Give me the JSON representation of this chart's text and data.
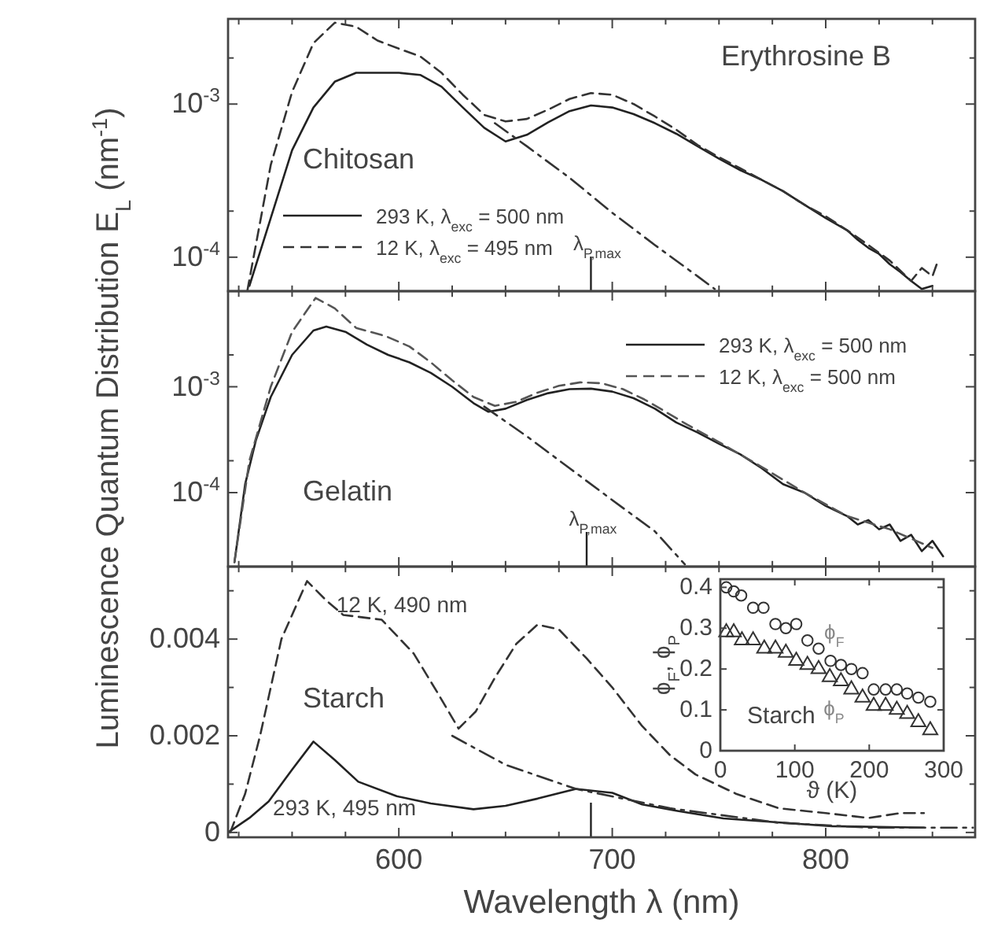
{
  "chart_data": [
    {
      "type": "line",
      "title": "Erythrosine B",
      "xlim": [
        520,
        870
      ],
      "ylim": [
        6e-05,
        0.0036
      ],
      "log": "y",
      "tick_labels": "y",
      "legend": "bottom left",
      "xticks": [
        {
          "value": 525,
          "label": null
        },
        {
          "value": 550,
          "label": null
        },
        {
          "value": 575,
          "label": null
        },
        600,
        {
          "value": 625,
          "label": null
        },
        {
          "value": 650,
          "label": null
        },
        {
          "value": 675,
          "label": null
        },
        700,
        {
          "value": 725,
          "label": null
        },
        {
          "value": 750,
          "label": null
        },
        {
          "value": 775,
          "label": null
        },
        800,
        {
          "value": 825,
          "label": null
        },
        {
          "value": 850,
          "label": null
        }
      ],
      "yticks": [
        {
          "value": 0.0001,
          "label": "10$^{-4}$"
        },
        {
          "value": 0.0002,
          "label": null
        },
        {
          "value": 0.001,
          "label": "10$^{-3}$"
        },
        {
          "value": 0.002,
          "label": null
        }
      ],
      "annotations": [
        "Chitosan"
      ],
      "ref_lines": [
        {
          "axis": "x",
          "value": 690,
          "label": "λ$_{P,max}$"
        }
      ],
      "series": [
        {
          "name": "293 K, λ$_{exc}$ = 500 nm",
          "color": "#222222",
          "line_style": "solid",
          "x": [
            530,
            540,
            550,
            560,
            570,
            580,
            590,
            600,
            610,
            620,
            630,
            640,
            650,
            660,
            670,
            680,
            690,
            700,
            710,
            720,
            730,
            740,
            750,
            760,
            770,
            780,
            790,
            800,
            810,
            815,
            820,
            825,
            830,
            835,
            840,
            845,
            850
          ],
          "values": [
            6.5e-05,
            0.00018,
            0.0005,
            0.00095,
            0.0014,
            0.0016,
            0.0016,
            0.0016,
            0.00155,
            0.0013,
            0.00095,
            0.0007,
            0.00057,
            0.00063,
            0.00076,
            0.0009,
            0.00098,
            0.00095,
            0.00086,
            0.00075,
            0.00064,
            0.00053,
            0.00044,
            0.00037,
            0.00032,
            0.00027,
            0.00022,
            0.00018,
            0.00015,
            0.00013,
            0.000115,
            0.000105,
            9e-05,
            8e-05,
            7e-05,
            6.2e-05,
            6.5e-05
          ]
        },
        {
          "name": "12 K, λ$_{exc}$ = 495 nm",
          "color": "#333333",
          "line_style": "dashed",
          "x": [
            529,
            540,
            550,
            560,
            570,
            580,
            590,
            600,
            610,
            620,
            630,
            640,
            650,
            660,
            670,
            680,
            690,
            700,
            710,
            720,
            730,
            740,
            750,
            760,
            770,
            780,
            790,
            800,
            810,
            820,
            830,
            840,
            845,
            850,
            852
          ],
          "values": [
            6e-05,
            0.0004,
            0.0012,
            0.0025,
            0.0034,
            0.0032,
            0.0026,
            0.0023,
            0.00205,
            0.0016,
            0.00115,
            0.00085,
            0.00077,
            0.0008,
            0.00092,
            0.00108,
            0.00118,
            0.00115,
            0.001,
            0.00083,
            0.00068,
            0.00054,
            0.00045,
            0.00038,
            0.00032,
            0.00027,
            0.00022,
            0.000185,
            0.00015,
            0.00012,
            9.5e-05,
            7e-05,
            8.5e-05,
            7.5e-05,
            9e-05
          ]
        },
        {
          "color": "#333333",
          "line_style": "dashdot",
          "x": [
            645,
            660,
            680,
            700,
            720,
            740,
            748
          ],
          "values": [
            0.00075,
            0.00053,
            0.00033,
            0.000195,
            0.00012,
            7.5e-05,
            6.2e-05
          ]
        }
      ]
    },
    {
      "type": "line",
      "ylabel": "Luminescence Quantum Distribution  E$_{L}$ (nm$^{-1}$)",
      "xlim": [
        520,
        870
      ],
      "ylim": [
        2e-05,
        0.008
      ],
      "log": "y",
      "tick_labels": "y",
      "legend": "top right",
      "xticks": [
        {
          "value": 525,
          "label": null
        },
        {
          "value": 550,
          "label": null
        },
        {
          "value": 575,
          "label": null
        },
        600,
        {
          "value": 625,
          "label": null
        },
        {
          "value": 650,
          "label": null
        },
        {
          "value": 675,
          "label": null
        },
        700,
        {
          "value": 725,
          "label": null
        },
        {
          "value": 750,
          "label": null
        },
        {
          "value": 775,
          "label": null
        },
        800,
        {
          "value": 825,
          "label": null
        },
        {
          "value": 850,
          "label": null
        }
      ],
      "yticks": [
        {
          "value": 0.0001,
          "label": "10$^{-4}$"
        },
        {
          "value": 0.0002,
          "label": null
        },
        {
          "value": 0.001,
          "label": "10$^{-3}$"
        },
        {
          "value": 0.002,
          "label": null
        }
      ],
      "annotations": [
        "Gelatin"
      ],
      "ref_lines": [
        {
          "axis": "x",
          "value": 688,
          "label": "λ$_{P,max}$"
        }
      ],
      "series": [
        {
          "name": "293 K, λ$_{exc}$ = 500 nm",
          "color": "#222222",
          "line_style": "solid",
          "x": [
            523,
            528,
            533,
            540,
            550,
            560,
            566,
            575,
            585,
            595,
            605,
            615,
            625,
            635,
            642,
            650,
            660,
            670,
            680,
            690,
            700,
            710,
            720,
            730,
            740,
            750,
            760,
            770,
            780,
            790,
            800,
            810,
            815,
            820,
            825,
            830,
            835,
            840,
            845,
            850,
            855
          ],
          "values": [
            2.2e-05,
            0.00012,
            0.00031,
            0.0008,
            0.002,
            0.0034,
            0.0037,
            0.0033,
            0.0025,
            0.002,
            0.0017,
            0.00135,
            0.001,
            0.0007,
            0.00058,
            0.00062,
            0.00075,
            0.00087,
            0.00095,
            0.00096,
            0.0009,
            0.00078,
            0.00062,
            0.00046,
            0.00037,
            0.00029,
            0.00023,
            0.00017,
            0.00012,
            0.0001,
            7.5e-05,
            6e-05,
            5e-05,
            5.5e-05,
            4.5e-05,
            5e-05,
            3.5e-05,
            4e-05,
            2.8e-05,
            3.5e-05,
            2.5e-05
          ]
        },
        {
          "name": "12 K, λ$_{exc}$ = 500 nm",
          "color": "#555555",
          "line_style": "dashed",
          "x": [
            523,
            530,
            540,
            550,
            561,
            570,
            580,
            594,
            605,
            615,
            625,
            635,
            645,
            655,
            665,
            675,
            685,
            695,
            705,
            715,
            725,
            735,
            750,
            770,
            790,
            810,
            830,
            850
          ],
          "values": [
            2.2e-05,
            0.0002,
            0.001,
            0.0033,
            0.0069,
            0.0055,
            0.0036,
            0.003,
            0.0024,
            0.0017,
            0.00115,
            0.0008,
            0.00066,
            0.00072,
            0.00088,
            0.00102,
            0.0011,
            0.00108,
            0.00095,
            0.00076,
            0.00058,
            0.00044,
            0.0003,
            0.000175,
            0.0001,
            6e-05,
            4.5e-05,
            3e-05
          ]
        },
        {
          "color": "#333333",
          "line_style": "dashdot",
          "x": [
            640,
            660,
            680,
            700,
            720,
            734
          ],
          "values": [
            0.00065,
            0.00034,
            0.00017,
            8.5e-05,
            4.3e-05,
            2.1e-05
          ]
        }
      ]
    },
    {
      "type": "line",
      "xlabel": "Wavelength  λ  (nm)",
      "xlim": [
        520,
        870
      ],
      "ylim": [
        -0.0001,
        0.0055
      ],
      "xticks": [
        {
          "value": 525,
          "label": null
        },
        {
          "value": 550,
          "label": null
        },
        {
          "value": 575,
          "label": null
        },
        600,
        {
          "value": 625,
          "label": null
        },
        {
          "value": 650,
          "label": null
        },
        {
          "value": 675,
          "label": null
        },
        700,
        {
          "value": 725,
          "label": null
        },
        {
          "value": 750,
          "label": null
        },
        {
          "value": 775,
          "label": null
        },
        800,
        {
          "value": 825,
          "label": null
        },
        {
          "value": 850,
          "label": null
        }
      ],
      "yticks": [
        0,
        {
          "value": 0.001,
          "label": null
        },
        0.002,
        {
          "value": 0.003,
          "label": null
        },
        0.004,
        {
          "value": 0.005,
          "label": null
        }
      ],
      "annotations": [
        "Starch",
        "12 K, 490 nm",
        "293 K, 495 nm"
      ],
      "ref_lines": [
        {
          "axis": "x",
          "value": 690,
          "label": null
        }
      ],
      "series": [
        {
          "color": "#222222",
          "line_style": "solid",
          "x": [
            520,
            530,
            539,
            550,
            560,
            570,
            581,
            599,
            615,
            635,
            650,
            665,
            683,
            700,
            714,
            730,
            752,
            780,
            803,
            846
          ],
          "values": [
            0,
            0.0003,
            0.00064,
            0.0013,
            0.00188,
            0.0015,
            0.00105,
            0.00075,
            0.0006,
            0.00048,
            0.00055,
            0.0007,
            0.0009,
            0.00082,
            0.00058,
            0.00045,
            0.00029,
            0.0002,
            0.00013,
            0.0001
          ]
        },
        {
          "color": "#333333",
          "line_style": "dashed",
          "x": [
            521,
            528,
            535,
            545,
            557,
            566,
            574,
            592,
            607,
            618,
            628,
            636,
            645,
            655,
            665,
            675,
            688,
            700,
            714,
            727,
            739,
            758,
            778,
            800,
            820,
            835,
            846
          ],
          "values": [
            0,
            0.0008,
            0.002,
            0.004,
            0.0052,
            0.0048,
            0.0045,
            0.0044,
            0.0037,
            0.0029,
            0.00215,
            0.0025,
            0.0032,
            0.0039,
            0.0043,
            0.0042,
            0.0036,
            0.003,
            0.0022,
            0.0016,
            0.0012,
            0.0008,
            0.0005,
            0.0004,
            0.0003,
            0.0004,
            0.0004
          ]
        },
        {
          "color": "#333333",
          "line_style": "dashdot",
          "x": [
            625,
            650,
            683,
            727,
            778,
            820,
            869
          ],
          "values": [
            0.002,
            0.0014,
            0.0009,
            0.0005,
            0.0002,
            0.0001,
            0.0001
          ]
        }
      ]
    },
    {
      "type": "scatter",
      "xlabel": "ϑ  (K)",
      "ylabel": "ϕ$_{F}$, ϕ$_{P}$",
      "xlim": [
        0,
        300
      ],
      "ylim": [
        0,
        0.42
      ],
      "xticks": [
        0,
        100,
        200,
        300
      ],
      "yticks": [
        0,
        0.1,
        0.2,
        0.3,
        0.4
      ],
      "annotations": [
        "Starch"
      ],
      "series": [
        {
          "name": "ϕ$_{F}$",
          "color": "#333333",
          "marker": "circle",
          "x": [
            8,
            18,
            28,
            44,
            58,
            74,
            88,
            102,
            117,
            132,
            148,
            162,
            176,
            191,
            206,
            222,
            237,
            251,
            266,
            282
          ],
          "values": [
            0.4,
            0.39,
            0.38,
            0.35,
            0.35,
            0.31,
            0.3,
            0.31,
            0.27,
            0.25,
            0.22,
            0.21,
            0.2,
            0.19,
            0.15,
            0.15,
            0.15,
            0.14,
            0.13,
            0.12
          ]
        },
        {
          "name": "ϕ$_{P}$",
          "color": "#333333",
          "marker": "triangle",
          "x": [
            8,
            18,
            29,
            44,
            59,
            74,
            88,
            102,
            117,
            132,
            147,
            162,
            176,
            191,
            206,
            222,
            237,
            251,
            266,
            282
          ],
          "values": [
            0.29,
            0.29,
            0.27,
            0.27,
            0.25,
            0.25,
            0.24,
            0.22,
            0.21,
            0.2,
            0.18,
            0.17,
            0.15,
            0.13,
            0.11,
            0.11,
            0.1,
            0.09,
            0.07,
            0.05
          ]
        }
      ]
    }
  ]
}
